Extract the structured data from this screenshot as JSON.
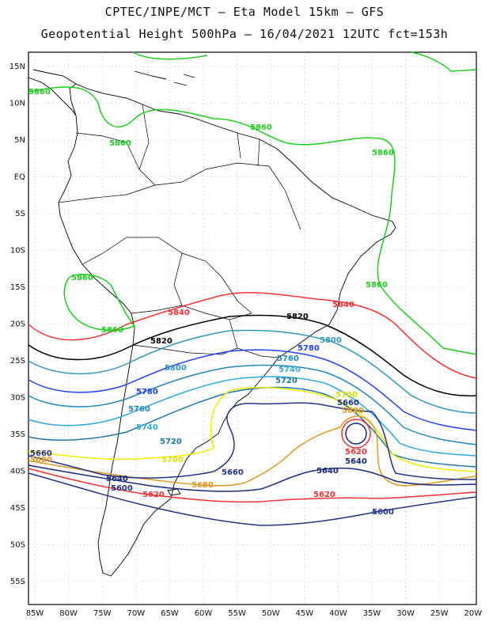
{
  "header": {
    "line1": "CPTEC/INPE/MCT – Eta Model 15km – GFS",
    "line2": "Geopotential Height 500hPa – 16/04/2021 12UTC fct=153h"
  },
  "axes": {
    "lat_ticks": [
      "15N",
      "10N",
      "5N",
      "EQ",
      "5S",
      "10S",
      "15S",
      "20S",
      "25S",
      "30S",
      "35S",
      "40S",
      "45S",
      "50S",
      "55S"
    ],
    "lon_ticks": [
      "85W",
      "80W",
      "75W",
      "70W",
      "65W",
      "60W",
      "55W",
      "50W",
      "45W",
      "40W",
      "35W",
      "30W",
      "25W",
      "20W"
    ]
  },
  "colors": {
    "5860": "#22cc22",
    "5840": "#ee3333",
    "5820": "#000000",
    "5800": "#3399bb",
    "5780": "#2244ee",
    "5760": "#2288bb",
    "5740": "#33aadd",
    "5720": "#2277aa",
    "5700": "#eeee00",
    "5680": "#dd9922",
    "5660": "#223388",
    "5640": "#1a2a7a",
    "5620": "#ee3333",
    "5600": "#223388"
  },
  "labels": {
    "c5860": "5860",
    "c5840": "5840",
    "c5820": "5820",
    "c5800": "5800",
    "c5780": "5780",
    "c5760": "5760",
    "c5740": "5740",
    "c5720": "5720",
    "c5700": "5700",
    "c5680": "5680",
    "c5660": "5660",
    "c5640": "5640",
    "c5620": "5620",
    "c5600": "5600"
  }
}
